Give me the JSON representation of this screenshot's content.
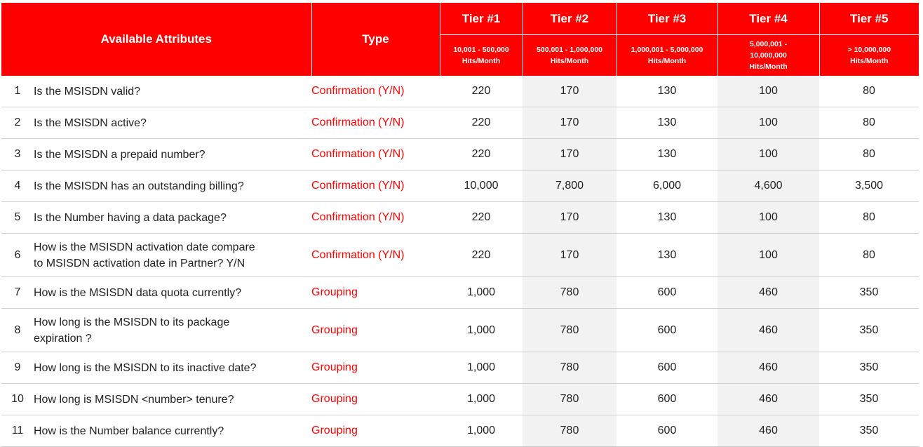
{
  "header": {
    "attributes_label": "Available Attributes",
    "type_label": "Type",
    "tiers": [
      {
        "name": "Tier #1",
        "range_line1": "10,001 - 500,000",
        "range_line2": "Hits/Month",
        "range_line3": ""
      },
      {
        "name": "Tier #2",
        "range_line1": "500,001 - 1,000,000",
        "range_line2": "Hits/Month",
        "range_line3": ""
      },
      {
        "name": "Tier #3",
        "range_line1": "1,000,001 - 5,000,000",
        "range_line2": "Hits/Month",
        "range_line3": ""
      },
      {
        "name": "Tier #4",
        "range_line1": "5,000,001 -",
        "range_line2": "10,000,000",
        "range_line3": "Hits/Month"
      },
      {
        "name": "Tier #5",
        "range_line1": "> 10,000,000",
        "range_line2": "Hits/Month",
        "range_line3": ""
      }
    ]
  },
  "rows": [
    {
      "no": "1",
      "attr": [
        "Is the MSISDN valid?"
      ],
      "type": "Confirmation (Y/N)",
      "prices": [
        "220",
        "170",
        "130",
        "100",
        "80"
      ]
    },
    {
      "no": "2",
      "attr": [
        "Is the MSISDN active?"
      ],
      "type": "Confirmation (Y/N)",
      "prices": [
        "220",
        "170",
        "130",
        "100",
        "80"
      ]
    },
    {
      "no": "3",
      "attr": [
        "Is the MSISDN a prepaid number?"
      ],
      "type": "Confirmation (Y/N)",
      "prices": [
        "220",
        "170",
        "130",
        "100",
        "80"
      ]
    },
    {
      "no": "4",
      "attr": [
        "Is the MSISDN has an outstanding billing?"
      ],
      "type": "Confirmation (Y/N)",
      "prices": [
        "10,000",
        "7,800",
        "6,000",
        "4,600",
        "3,500"
      ]
    },
    {
      "no": "5",
      "attr": [
        "Is the Number having a data package?"
      ],
      "type": "Confirmation (Y/N)",
      "prices": [
        "220",
        "170",
        "130",
        "100",
        "80"
      ]
    },
    {
      "no": "6",
      "attr": [
        "How is the MSISDN activation date compare",
        "to MSISDN activation date in Partner? Y/N"
      ],
      "type": "Confirmation (Y/N)",
      "prices": [
        "220",
        "170",
        "130",
        "100",
        "80"
      ]
    },
    {
      "no": "7",
      "attr": [
        "How is the MSISDN data quota currently?"
      ],
      "type": "Grouping",
      "prices": [
        "1,000",
        "780",
        "600",
        "460",
        "350"
      ]
    },
    {
      "no": "8",
      "attr": [
        "How long is the MSISDN to its package",
        "expiration ?"
      ],
      "type": "Grouping",
      "prices": [
        "1,000",
        "780",
        "600",
        "460",
        "350"
      ]
    },
    {
      "no": "9",
      "attr": [
        "How long is the MSISDN to its inactive date?"
      ],
      "type": "Grouping",
      "prices": [
        "1,000",
        "780",
        "600",
        "460",
        "350"
      ]
    },
    {
      "no": "10",
      "attr": [
        "How long is MSISDN <number> tenure?"
      ],
      "type": "Grouping",
      "prices": [
        "1,000",
        "780",
        "600",
        "460",
        "350"
      ]
    },
    {
      "no": "11",
      "attr": [
        "How is the Number balance currently?"
      ],
      "type": "Grouping",
      "prices": [
        "1,000",
        "780",
        "600",
        "460",
        "350"
      ]
    }
  ],
  "colors": {
    "header_bg": "#ff0000",
    "type_text": "#ff0000",
    "shaded_col_bg": "#f2f2f2"
  }
}
